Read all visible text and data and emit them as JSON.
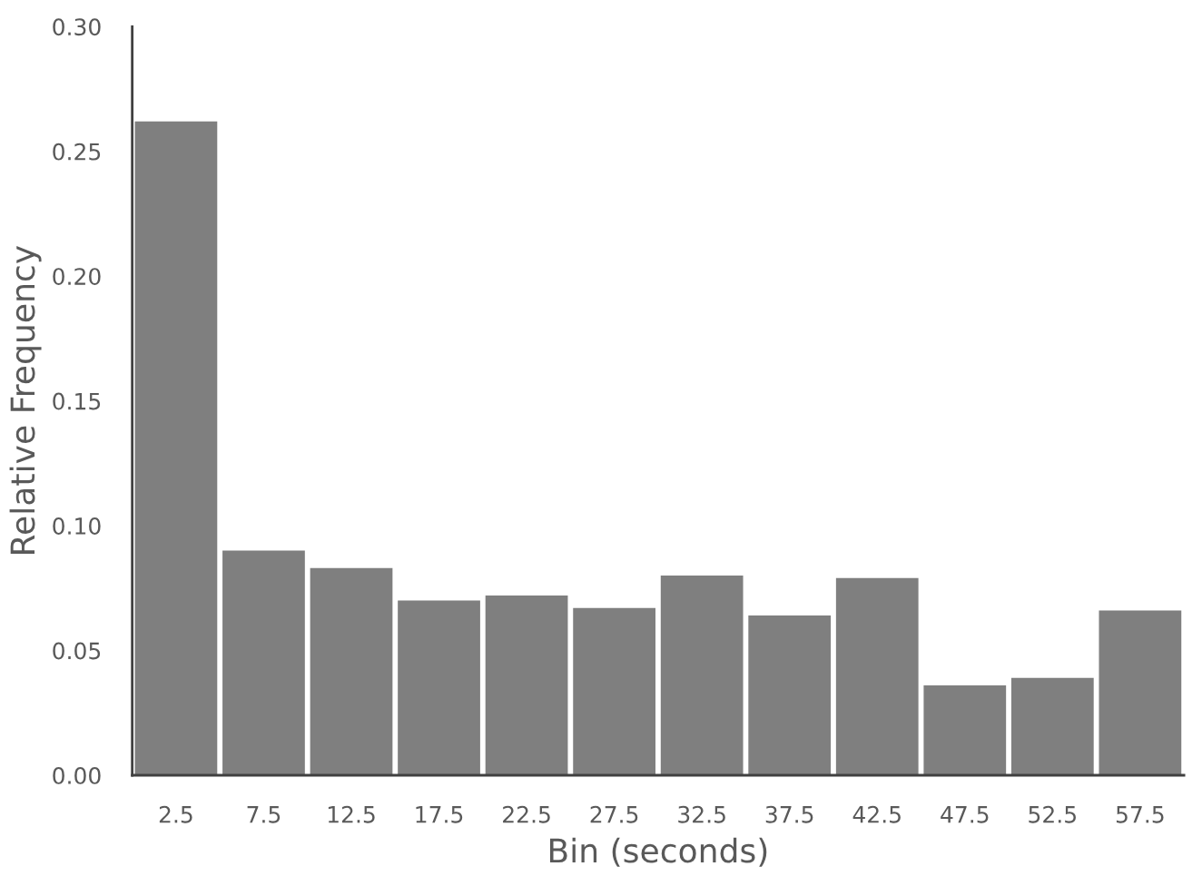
{
  "chart_data": {
    "type": "bar",
    "xlabel": "Bin (seconds)",
    "ylabel": "Relative Frequency",
    "categories": [
      "2.5",
      "7.5",
      "12.5",
      "17.5",
      "22.5",
      "27.5",
      "32.5",
      "37.5",
      "42.5",
      "47.5",
      "52.5",
      "57.5"
    ],
    "values": [
      0.262,
      0.09,
      0.083,
      0.07,
      0.072,
      0.067,
      0.08,
      0.064,
      0.079,
      0.036,
      0.039,
      0.066
    ],
    "color": "#7f7f7f",
    "ylim": [
      0,
      0.3
    ],
    "yticks": [
      {
        "value": 0,
        "label": "0.00"
      },
      {
        "value": 0.05,
        "label": "0.05"
      },
      {
        "value": 0.1,
        "label": "0.10"
      },
      {
        "value": 0.15,
        "label": "0.15"
      },
      {
        "value": 0.2,
        "label": "0.20"
      },
      {
        "value": 0.25,
        "label": "0.25"
      },
      {
        "value": 0.3,
        "label": "0.30"
      }
    ],
    "grid": false,
    "legend": false
  }
}
